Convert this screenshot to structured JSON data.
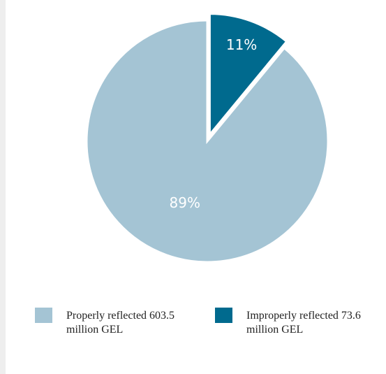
{
  "chart_data": {
    "type": "pie",
    "categories": [
      "Properly reflected 603.5 million GEL",
      "Improperly reflected 73.6 million GEL"
    ],
    "values": [
      89,
      11
    ],
    "value_labels": [
      "89%",
      "11%"
    ],
    "colors": [
      "#a4c4d4",
      "#006a8e"
    ]
  }
}
